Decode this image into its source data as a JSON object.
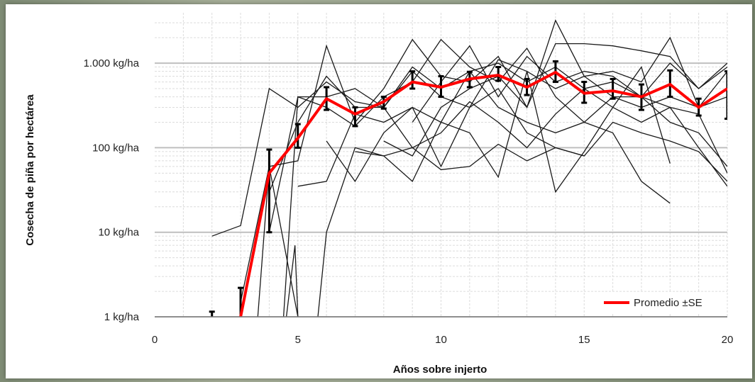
{
  "chart_data": {
    "type": "line",
    "title": "",
    "xlabel": "Años sobre injerto",
    "ylabel": "Cosecha de piña por hectárea",
    "xlim": [
      0,
      20
    ],
    "ylim": [
      1,
      4000
    ],
    "y_scale": "log",
    "x_ticks": [
      0,
      5,
      10,
      15,
      20
    ],
    "x_tick_labels": [
      "0",
      "5",
      "10",
      "15",
      "20"
    ],
    "y_ticks": [
      1,
      10,
      100,
      1000
    ],
    "y_tick_labels": [
      "1 kg/ha",
      "10 kg/ha",
      "100 kg/ha",
      "1.000 kg/ha"
    ],
    "grid": true,
    "legend": {
      "position": "bottom-right",
      "entries": [
        "Promedio ±SE"
      ]
    },
    "colors": {
      "mean": "#ff0000",
      "individual": "#1a1a1a",
      "error_bars": "#000000",
      "major_grid": "#bfbfbf",
      "minor_grid": "#dcdcdc"
    },
    "mean_series": {
      "name": "Promedio ±SE",
      "x": [
        2.8,
        3,
        4,
        5,
        6,
        7,
        8,
        9,
        10,
        11,
        12,
        13,
        14,
        15,
        16,
        17,
        18,
        19,
        20
      ],
      "y": [
        0.8,
        1,
        50,
        130,
        380,
        250,
        350,
        600,
        520,
        650,
        720,
        520,
        780,
        440,
        470,
        400,
        560,
        300,
        500
      ],
      "se_low": [
        null,
        0.55,
        10,
        100,
        280,
        180,
        290,
        500,
        400,
        520,
        620,
        420,
        600,
        340,
        380,
        280,
        400,
        240,
        220
      ],
      "se_high": [
        null,
        2.2,
        95,
        190,
        520,
        300,
        400,
        800,
        700,
        790,
        900,
        650,
        1050,
        600,
        650,
        560,
        820,
        380,
        800
      ]
    },
    "individual_series": [
      {
        "x": [
          2,
          3,
          4,
          5,
          6,
          7,
          8,
          9,
          10,
          11,
          12,
          13,
          14,
          15,
          16,
          17,
          18,
          19,
          20
        ],
        "y": [
          9,
          12,
          500,
          300,
          600,
          350,
          300,
          900,
          500,
          800,
          1000,
          600,
          900,
          500,
          600,
          400,
          1000,
          500,
          1000
        ]
      },
      {
        "x": [
          3,
          4,
          5,
          6,
          7,
          8,
          9,
          10,
          11,
          12,
          13,
          14,
          15,
          16,
          17,
          18,
          19,
          20
        ],
        "y": [
          1.5,
          60,
          70,
          1600,
          200,
          500,
          1900,
          700,
          600,
          1200,
          300,
          3200,
          700,
          800,
          600,
          2000,
          300,
          800
        ]
      },
      {
        "x": [
          4,
          5,
          6,
          7,
          8,
          9,
          10,
          11,
          12,
          13,
          14,
          15,
          16,
          17,
          18,
          19,
          20
        ],
        "y": [
          10,
          400,
          300,
          180,
          400,
          600,
          1900,
          900,
          600,
          1500,
          400,
          200,
          400,
          300,
          400,
          300,
          400
        ]
      },
      {
        "x": [
          4,
          5,
          6,
          7,
          8,
          9,
          10,
          11,
          12,
          13,
          14,
          15,
          16,
          17,
          18,
          19,
          20
        ],
        "y": [
          30,
          200,
          700,
          300,
          300,
          800,
          400,
          300,
          1100,
          800,
          500,
          700,
          400,
          400,
          200,
          150,
          60
        ]
      },
      {
        "x": [
          5,
          6,
          7,
          8,
          9,
          10,
          11,
          12,
          13,
          14,
          15,
          16,
          17,
          18,
          19,
          20
        ],
        "y": [
          35,
          40,
          250,
          200,
          300,
          60,
          300,
          500,
          150,
          100,
          80,
          200,
          150,
          120,
          90,
          40
        ]
      },
      {
        "x": [
          4.5,
          5,
          6,
          7,
          8,
          9,
          10,
          11,
          12,
          13,
          14,
          15,
          16,
          17,
          18,
          19,
          20
        ],
        "y": [
          1,
          400,
          400,
          500,
          300,
          100,
          150,
          350,
          200,
          100,
          250,
          500,
          300,
          200,
          300,
          100,
          35
        ]
      },
      {
        "x": [
          5.7,
          6,
          7,
          8,
          9,
          10,
          11,
          12,
          13,
          14,
          15
        ],
        "y": [
          1,
          10,
          100,
          80,
          100,
          55,
          60,
          110,
          70,
          100,
          80
        ]
      },
      {
        "x": [
          6,
          7,
          8,
          9,
          10,
          11,
          12,
          13,
          14,
          15,
          16,
          17,
          18
        ],
        "y": [
          120,
          40,
          150,
          300,
          200,
          800,
          300,
          200,
          150,
          200,
          150,
          40,
          22
        ]
      },
      {
        "x": [
          7,
          8,
          9,
          10,
          11,
          12,
          13,
          14,
          15,
          16,
          17,
          18
        ],
        "y": [
          90,
          80,
          40,
          200,
          150,
          45,
          800,
          30,
          90,
          300,
          900,
          65
        ]
      },
      {
        "x": [
          8,
          9,
          10,
          11,
          12,
          13,
          14,
          15,
          16,
          17,
          18,
          19,
          20
        ],
        "y": [
          120,
          80,
          300,
          500,
          700,
          300,
          1700,
          1700,
          1600,
          1400,
          1200,
          500,
          900
        ]
      },
      {
        "x": [
          9,
          10,
          11,
          12,
          13,
          14,
          15,
          16,
          17,
          18,
          19,
          20
        ],
        "y": [
          200,
          600,
          1600,
          400,
          1200,
          600,
          800,
          700,
          400,
          300,
          250,
          50
        ]
      },
      {
        "x": [
          3.6,
          4,
          5
        ],
        "y": [
          1,
          60,
          1
        ]
      },
      {
        "x": [
          4.6,
          4.9,
          5
        ],
        "y": [
          1,
          7,
          1
        ]
      }
    ]
  }
}
